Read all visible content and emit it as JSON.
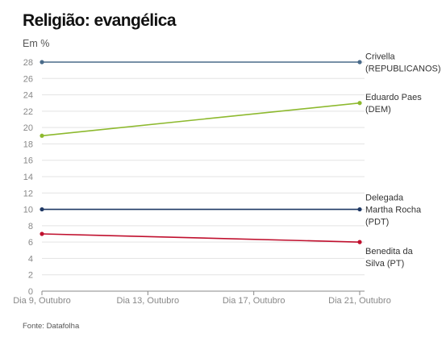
{
  "title": "Religião: evangélica",
  "subtitle": "Em %",
  "source": "Fonte: Datafolha",
  "chart_data": {
    "type": "line",
    "x": [
      "Dia 9, Outubro",
      "Dia 13, Outubro",
      "Dia 17, Outubro",
      "Dia 21, Outubro"
    ],
    "ylim": [
      0,
      28
    ],
    "yticks": [
      0,
      2,
      4,
      6,
      8,
      10,
      12,
      14,
      16,
      18,
      20,
      22,
      24,
      26,
      28
    ],
    "grid": true,
    "legend": "right (labels at line ends)",
    "series": [
      {
        "name": "Crivella (REPUBLICANOS)",
        "label_lines": [
          "Crivella",
          "(REPUBLICANOS)"
        ],
        "color": "#4a6b8a",
        "points": [
          {
            "x": "Dia 9, Outubro",
            "y": 28
          },
          {
            "x": "Dia 21, Outubro",
            "y": 28
          }
        ]
      },
      {
        "name": "Eduardo Paes (DEM)",
        "label_lines": [
          "Eduardo Paes",
          "(DEM)"
        ],
        "color": "#8db92e",
        "points": [
          {
            "x": "Dia 9, Outubro",
            "y": 19
          },
          {
            "x": "Dia 21, Outubro",
            "y": 23
          }
        ]
      },
      {
        "name": "Delegada Martha Rocha (PDT)",
        "label_lines": [
          "Delegada",
          "Martha Rocha",
          "(PDT)"
        ],
        "color": "#1f3864",
        "points": [
          {
            "x": "Dia 9, Outubro",
            "y": 10
          },
          {
            "x": "Dia 21, Outubro",
            "y": 10
          }
        ]
      },
      {
        "name": "Benedita da Silva (PT)",
        "label_lines": [
          "Benedita da",
          "Silva (PT)"
        ],
        "color": "#c0102e",
        "points": [
          {
            "x": "Dia 9, Outubro",
            "y": 7
          },
          {
            "x": "Dia 21, Outubro",
            "y": 6
          }
        ]
      }
    ]
  }
}
